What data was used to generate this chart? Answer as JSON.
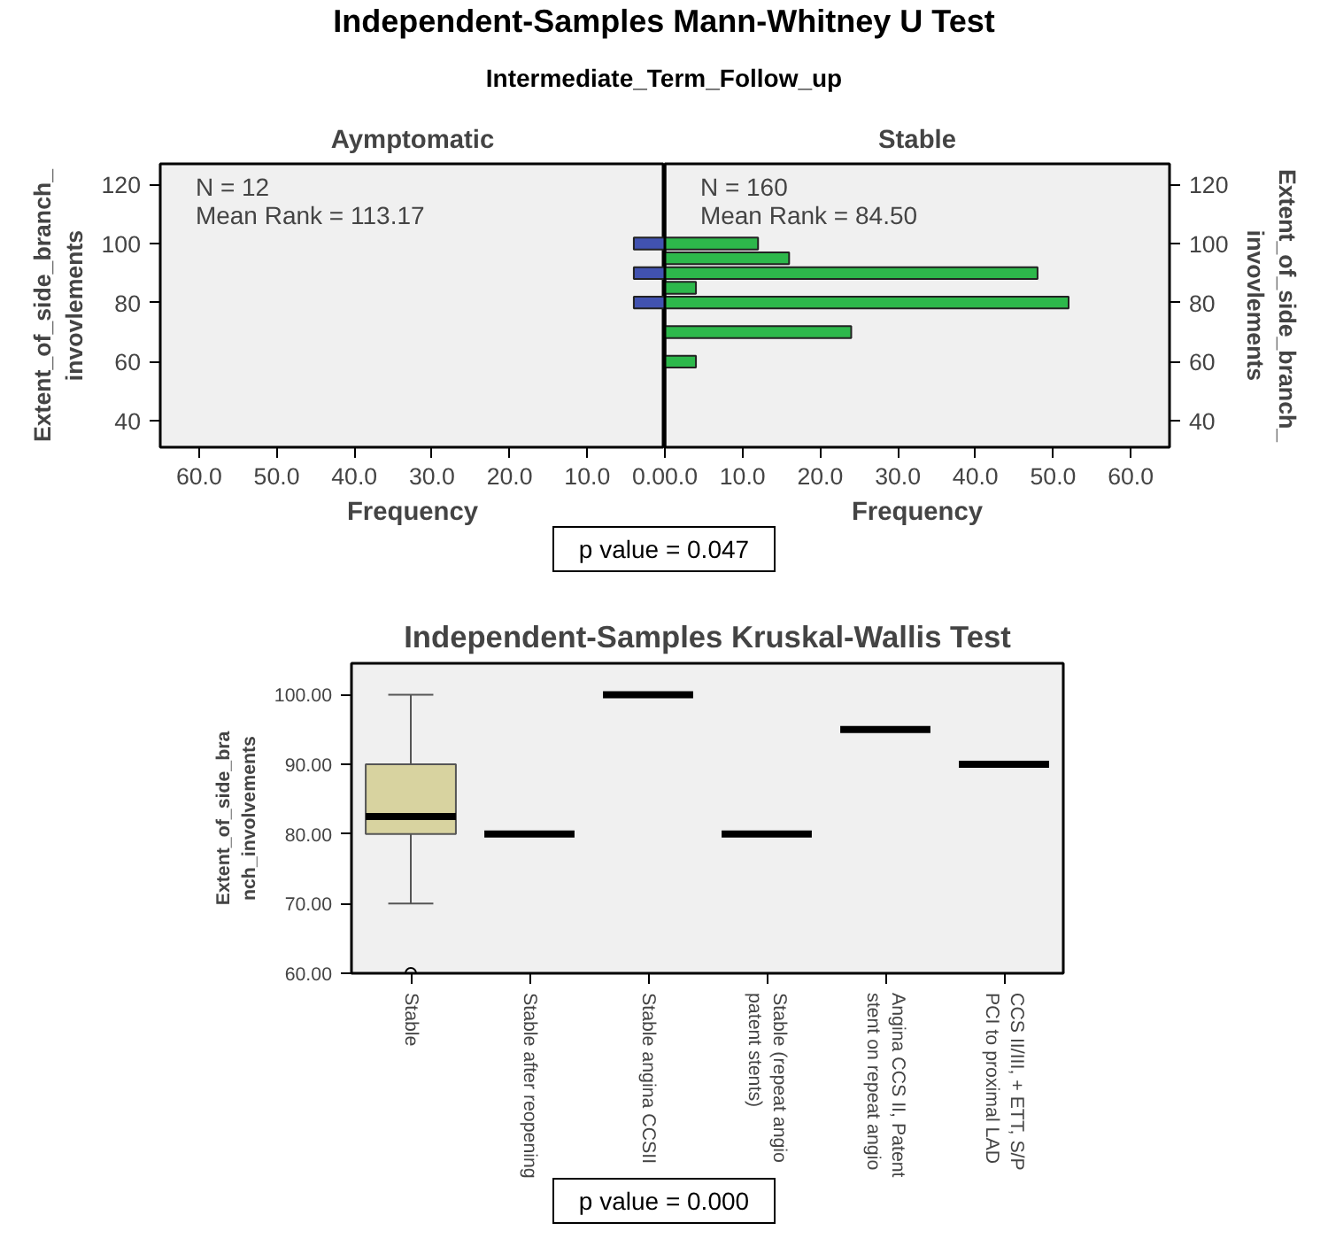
{
  "chart_data": [
    {
      "type": "bar",
      "orientation": "horizontal",
      "title": "Independent-Samples Mann-Whitney U Test",
      "subtitle": "Intermediate_Term_Follow_up",
      "ylabel": "Extent_of_side_branch_ invovlements",
      "xlabel": "Frequency",
      "x": [
        100,
        90,
        80
      ],
      "series": [
        {
          "name": "Aymptomatic",
          "color": "#4152b0",
          "values": [
            4,
            4,
            4
          ]
        }
      ],
      "xlim": [
        65,
        0
      ],
      "xticks": [
        {
          "value": 60,
          "label": "60.0"
        },
        {
          "value": 50,
          "label": "50.0"
        },
        {
          "value": 40,
          "label": "40.0"
        },
        {
          "value": 30,
          "label": "30.0"
        },
        {
          "value": 20,
          "label": "20.0"
        },
        {
          "value": 10,
          "label": "10.0"
        },
        {
          "value": 0,
          "label": "0.0"
        }
      ],
      "ylim": [
        31,
        127
      ],
      "yticks": [
        40,
        60,
        80,
        100,
        120
      ],
      "annotations": [
        "N = 12",
        "Mean Rank = 113.17"
      ],
      "grid": false
    },
    {
      "type": "bar",
      "orientation": "horizontal",
      "ylabel": "Extent_of_side_branch_ invovlements",
      "xlabel": "Frequency",
      "x": [
        100,
        95,
        90,
        85,
        80,
        70,
        60
      ],
      "series": [
        {
          "name": "Stable",
          "color": "#2db84b",
          "values": [
            12,
            16,
            48,
            4,
            52,
            24,
            4
          ]
        }
      ],
      "xlim": [
        0,
        65
      ],
      "xticks": [
        {
          "value": 0,
          "label": "0.0"
        },
        {
          "value": 10,
          "label": "10.0"
        },
        {
          "value": 20,
          "label": "20.0"
        },
        {
          "value": 30,
          "label": "30.0"
        },
        {
          "value": 40,
          "label": "40.0"
        },
        {
          "value": 50,
          "label": "50.0"
        },
        {
          "value": 60,
          "label": "60.0"
        }
      ],
      "ylim": [
        31,
        127
      ],
      "yticks": [
        40,
        60,
        80,
        100,
        120
      ],
      "annotations": [
        "N = 160",
        "Mean Rank = 84.50",
        "p value = 0.047"
      ],
      "grid": false
    },
    {
      "type": "box",
      "title": "Independent-Samples Kruskal-Wallis Test",
      "ylabel": "Extent_of_side_branch_involvements",
      "categories": [
        "Stable",
        "Stable after reopening",
        "Stable angina CCSII",
        "Stable (repeat angio patent stents)",
        "Angina CCS II, Patent stent on repeat angio",
        "CCS II/III, + ETT, S/P PCI to proximal LAD"
      ],
      "series": [
        {
          "color": "#d8d3a0",
          "boxes": [
            {
              "low": 70,
              "q1": 80,
              "median": 82.5,
              "q3": 90,
              "high": 100,
              "outliers": [
                60
              ]
            },
            {
              "low": 80,
              "q1": 80,
              "median": 80,
              "q3": 80,
              "high": 80
            },
            {
              "low": 100,
              "q1": 100,
              "median": 100,
              "q3": 100,
              "high": 100
            },
            {
              "low": 80,
              "q1": 80,
              "median": 80,
              "q3": 80,
              "high": 80
            },
            {
              "low": 95,
              "q1": 95,
              "median": 95,
              "q3": 95,
              "high": 95
            },
            {
              "low": 90,
              "q1": 90,
              "median": 90,
              "q3": 90,
              "high": 90
            }
          ]
        }
      ],
      "ylim": [
        60,
        104.5
      ],
      "yticks": [
        {
          "value": 60,
          "label": "60.00"
        },
        {
          "value": 70,
          "label": "70.00"
        },
        {
          "value": 80,
          "label": "80.00"
        },
        {
          "value": 90,
          "label": "90.00"
        },
        {
          "value": 100,
          "label": "100.00"
        }
      ],
      "annotations": [
        "p value = 0.000"
      ],
      "grid": false
    }
  ]
}
